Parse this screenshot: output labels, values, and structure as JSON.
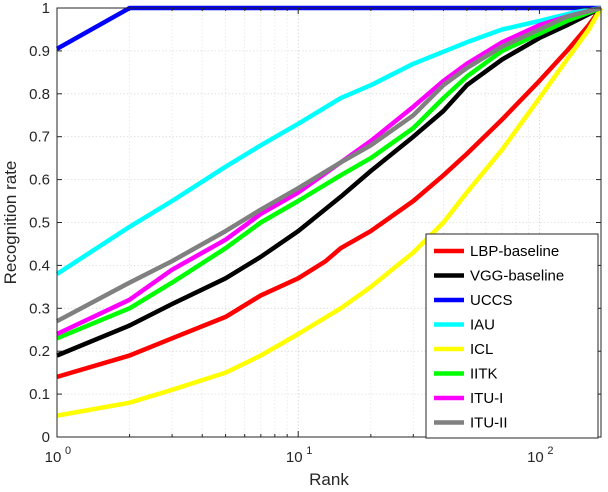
{
  "chart_data": {
    "type": "line",
    "xlabel": "Rank",
    "ylabel": "Recognition rate",
    "xscale": "log",
    "xlim": [
      1,
      180
    ],
    "ylim": [
      0,
      1
    ],
    "grid": true,
    "legend_position": "bottom-right",
    "x_ticks": [
      {
        "base": "10",
        "exp": "0",
        "value": 1
      },
      {
        "base": "10",
        "exp": "1",
        "value": 10
      },
      {
        "base": "10",
        "exp": "2",
        "value": 100
      }
    ],
    "y_ticks": [
      "0",
      "0.1",
      "0.2",
      "0.3",
      "0.4",
      "0.5",
      "0.6",
      "0.7",
      "0.8",
      "0.9",
      "1"
    ],
    "series": [
      {
        "name": "LBP-baseline",
        "color": "#ff0000",
        "points": [
          [
            1,
            0.14
          ],
          [
            2,
            0.19
          ],
          [
            3,
            0.23
          ],
          [
            5,
            0.28
          ],
          [
            7,
            0.33
          ],
          [
            10,
            0.37
          ],
          [
            13,
            0.41
          ],
          [
            15,
            0.44
          ],
          [
            20,
            0.48
          ],
          [
            30,
            0.55
          ],
          [
            40,
            0.61
          ],
          [
            50,
            0.66
          ],
          [
            70,
            0.74
          ],
          [
            100,
            0.83
          ],
          [
            130,
            0.9
          ],
          [
            160,
            0.96
          ],
          [
            180,
            1.0
          ]
        ]
      },
      {
        "name": "VGG-baseline",
        "color": "#000000",
        "points": [
          [
            1,
            0.19
          ],
          [
            2,
            0.26
          ],
          [
            3,
            0.31
          ],
          [
            5,
            0.37
          ],
          [
            7,
            0.42
          ],
          [
            10,
            0.48
          ],
          [
            15,
            0.56
          ],
          [
            20,
            0.62
          ],
          [
            30,
            0.7
          ],
          [
            40,
            0.76
          ],
          [
            50,
            0.82
          ],
          [
            70,
            0.88
          ],
          [
            100,
            0.93
          ],
          [
            130,
            0.96
          ],
          [
            180,
            1.0
          ]
        ]
      },
      {
        "name": "UCCS",
        "color": "#0000ff",
        "points": [
          [
            1,
            0.905
          ],
          [
            2,
            1.0
          ],
          [
            180,
            1.0
          ]
        ]
      },
      {
        "name": "IAU",
        "color": "#00ffff",
        "points": [
          [
            1,
            0.38
          ],
          [
            2,
            0.49
          ],
          [
            3,
            0.55
          ],
          [
            5,
            0.63
          ],
          [
            7,
            0.68
          ],
          [
            10,
            0.73
          ],
          [
            15,
            0.79
          ],
          [
            20,
            0.82
          ],
          [
            30,
            0.87
          ],
          [
            50,
            0.92
          ],
          [
            70,
            0.95
          ],
          [
            100,
            0.97
          ],
          [
            140,
            0.99
          ],
          [
            180,
            1.0
          ]
        ]
      },
      {
        "name": "ICL",
        "color": "#ffff00",
        "points": [
          [
            1,
            0.05
          ],
          [
            2,
            0.08
          ],
          [
            3,
            0.11
          ],
          [
            5,
            0.15
          ],
          [
            7,
            0.19
          ],
          [
            10,
            0.24
          ],
          [
            15,
            0.3
          ],
          [
            20,
            0.35
          ],
          [
            30,
            0.43
          ],
          [
            40,
            0.5
          ],
          [
            50,
            0.57
          ],
          [
            70,
            0.67
          ],
          [
            100,
            0.79
          ],
          [
            130,
            0.88
          ],
          [
            160,
            0.95
          ],
          [
            180,
            1.0
          ]
        ]
      },
      {
        "name": "IITK",
        "color": "#00ff00",
        "points": [
          [
            1,
            0.23
          ],
          [
            2,
            0.3
          ],
          [
            3,
            0.36
          ],
          [
            5,
            0.44
          ],
          [
            7,
            0.5
          ],
          [
            10,
            0.55
          ],
          [
            15,
            0.61
          ],
          [
            20,
            0.65
          ],
          [
            30,
            0.72
          ],
          [
            40,
            0.79
          ],
          [
            50,
            0.84
          ],
          [
            70,
            0.9
          ],
          [
            100,
            0.94
          ],
          [
            130,
            0.97
          ],
          [
            180,
            1.0
          ]
        ]
      },
      {
        "name": "ITU-I",
        "color": "#ff00ff",
        "points": [
          [
            1,
            0.24
          ],
          [
            2,
            0.32
          ],
          [
            3,
            0.39
          ],
          [
            5,
            0.46
          ],
          [
            7,
            0.52
          ],
          [
            10,
            0.57
          ],
          [
            15,
            0.64
          ],
          [
            20,
            0.69
          ],
          [
            30,
            0.77
          ],
          [
            40,
            0.83
          ],
          [
            50,
            0.87
          ],
          [
            70,
            0.92
          ],
          [
            100,
            0.96
          ],
          [
            130,
            0.98
          ],
          [
            180,
            1.0
          ]
        ]
      },
      {
        "name": "ITU-II",
        "color": "#808080",
        "points": [
          [
            1,
            0.27
          ],
          [
            2,
            0.36
          ],
          [
            3,
            0.41
          ],
          [
            5,
            0.48
          ],
          [
            7,
            0.53
          ],
          [
            10,
            0.58
          ],
          [
            15,
            0.64
          ],
          [
            20,
            0.68
          ],
          [
            30,
            0.75
          ],
          [
            40,
            0.82
          ],
          [
            50,
            0.86
          ],
          [
            70,
            0.91
          ],
          [
            100,
            0.95
          ],
          [
            130,
            0.98
          ],
          [
            180,
            1.0
          ]
        ]
      }
    ]
  }
}
